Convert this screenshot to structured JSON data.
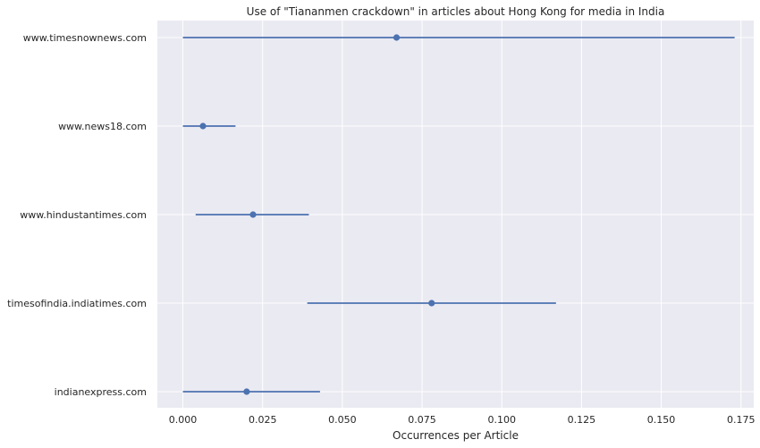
{
  "chart_data": {
    "type": "scatter",
    "title": "Use of \"Tiananmen crackdown\" in articles about Hong Kong for media in India",
    "xlabel": "Occurrences per Article",
    "ylabel": "",
    "xlim": [
      -0.008,
      0.179
    ],
    "grid": true,
    "x_ticks": [
      0.0,
      0.025,
      0.05,
      0.075,
      0.1,
      0.125,
      0.15,
      0.175
    ],
    "x_tick_labels": [
      "0.000",
      "0.025",
      "0.050",
      "0.075",
      "0.100",
      "0.125",
      "0.150",
      "0.175"
    ],
    "categories": [
      "www.timesnownews.com",
      "www.news18.com",
      "www.hindustantimes.com",
      "timesofindia.indiatimes.com",
      "indianexpress.com"
    ],
    "values": [
      0.067,
      0.0063,
      0.022,
      0.078,
      0.02
    ],
    "error_low": [
      0.0,
      0.0,
      0.004,
      0.039,
      0.0
    ],
    "error_high": [
      0.173,
      0.0165,
      0.0395,
      0.117,
      0.043
    ],
    "colors": {
      "background": "#eaeaf2",
      "grid": "#ffffff",
      "marker": "#4c72b0",
      "text": "#262626"
    }
  }
}
